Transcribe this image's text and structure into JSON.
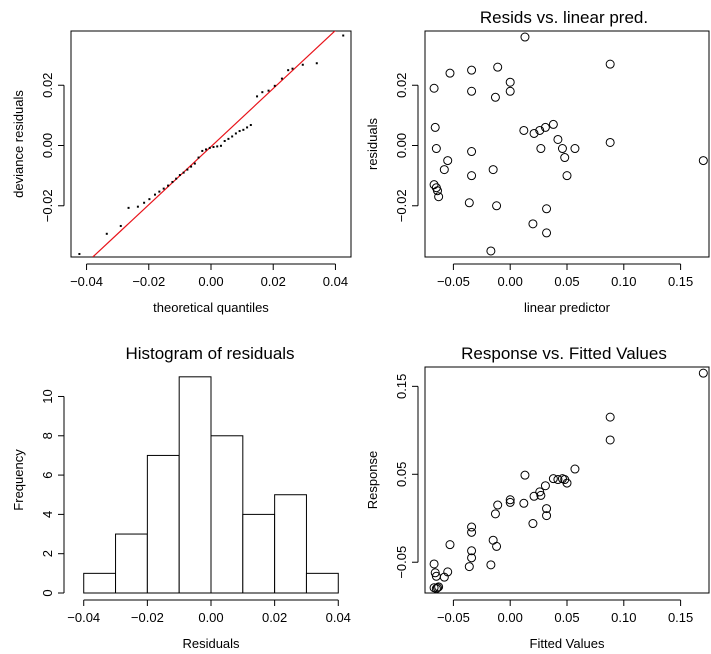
{
  "chart_data": [
    {
      "id": "qq",
      "type": "scatter",
      "title": "",
      "xlabel": "theoretical quantiles",
      "ylabel": "deviance residuals",
      "xlim": [
        -0.045,
        0.045
      ],
      "ylim": [
        -0.037,
        0.038
      ],
      "xticks": [
        -0.04,
        -0.02,
        0.0,
        0.02,
        0.04
      ],
      "xtick_labels": [
        "−0.04",
        "−0.02",
        "0.00",
        "0.02",
        "0.04"
      ],
      "yticks": [
        -0.02,
        0.0,
        0.02
      ],
      "ytick_labels": [
        "−0.02",
        "0.00",
        "0.02"
      ],
      "marker": "dot",
      "reference_line": {
        "color": "#e8141b",
        "x1": -0.038,
        "y1": -0.037,
        "x2": 0.045,
        "y2": 0.043
      },
      "points": [
        [
          -0.0423,
          -0.036
        ],
        [
          -0.0335,
          -0.0293
        ],
        [
          -0.029,
          -0.0267
        ],
        [
          -0.0265,
          -0.0207
        ],
        [
          -0.0235,
          -0.0203
        ],
        [
          -0.0215,
          -0.019
        ],
        [
          -0.0198,
          -0.0178
        ],
        [
          -0.018,
          -0.0163
        ],
        [
          -0.0166,
          -0.0153
        ],
        [
          -0.0152,
          -0.0143
        ],
        [
          -0.0138,
          -0.0133
        ],
        [
          -0.0124,
          -0.0121
        ],
        [
          -0.0112,
          -0.011
        ],
        [
          -0.01,
          -0.0098
        ],
        [
          -0.0088,
          -0.009
        ],
        [
          -0.0076,
          -0.008
        ],
        [
          -0.0064,
          -0.007
        ],
        [
          -0.0052,
          -0.006
        ],
        [
          -0.004,
          -0.004
        ],
        [
          -0.0028,
          -0.0018
        ],
        [
          -0.0016,
          -0.0013
        ],
        [
          -0.0004,
          -0.0008
        ],
        [
          0.0008,
          -0.0005
        ],
        [
          0.002,
          -0.0003
        ],
        [
          0.0032,
          -0.0001
        ],
        [
          0.0044,
          0.0015
        ],
        [
          0.0056,
          0.0022
        ],
        [
          0.0068,
          0.003
        ],
        [
          0.008,
          0.004
        ],
        [
          0.0092,
          0.0048
        ],
        [
          0.0104,
          0.0052
        ],
        [
          0.0116,
          0.006
        ],
        [
          0.0128,
          0.0068
        ],
        [
          0.0148,
          0.0163
        ],
        [
          0.0165,
          0.0177
        ],
        [
          0.0185,
          0.0182
        ],
        [
          0.0205,
          0.0198
        ],
        [
          0.0228,
          0.0222
        ],
        [
          0.0248,
          0.025
        ],
        [
          0.0262,
          0.0255
        ],
        [
          0.0295,
          0.0268
        ],
        [
          0.034,
          0.0273
        ],
        [
          0.0425,
          0.0365
        ]
      ]
    },
    {
      "id": "resid-lp",
      "type": "scatter",
      "title": "Resids vs. linear pred.",
      "xlabel": "linear predictor",
      "ylabel": "residuals",
      "xlim": [
        -0.075,
        0.175
      ],
      "ylim": [
        -0.037,
        0.038
      ],
      "xticks": [
        -0.05,
        0.0,
        0.05,
        0.1,
        0.15
      ],
      "xtick_labels": [
        "−0.05",
        "0.00",
        "0.05",
        "0.10",
        "0.15"
      ],
      "yticks": [
        -0.02,
        0.0,
        0.02
      ],
      "ytick_labels": [
        "−0.02",
        "0.00",
        "0.02"
      ],
      "marker": "circle",
      "points": [
        [
          -0.067,
          0.019
        ],
        [
          -0.066,
          0.006
        ],
        [
          -0.065,
          -0.001
        ],
        [
          -0.067,
          -0.013
        ],
        [
          -0.065,
          -0.014
        ],
        [
          -0.064,
          -0.015
        ],
        [
          -0.063,
          -0.017
        ],
        [
          -0.058,
          -0.008
        ],
        [
          -0.055,
          -0.005
        ],
        [
          -0.053,
          0.024
        ],
        [
          -0.036,
          -0.019
        ],
        [
          -0.034,
          -0.01
        ],
        [
          -0.034,
          -0.002
        ],
        [
          -0.034,
          0.018
        ],
        [
          -0.034,
          0.025
        ],
        [
          -0.017,
          -0.035
        ],
        [
          -0.015,
          -0.008
        ],
        [
          -0.013,
          0.016
        ],
        [
          -0.012,
          -0.02
        ],
        [
          -0.011,
          0.026
        ],
        [
          0.0,
          0.018
        ],
        [
          0.0,
          0.021
        ],
        [
          0.013,
          0.036
        ],
        [
          0.012,
          0.005
        ],
        [
          0.02,
          -0.026
        ],
        [
          0.021,
          0.004
        ],
        [
          0.026,
          0.005
        ],
        [
          0.027,
          -0.001
        ],
        [
          0.031,
          0.006
        ],
        [
          0.032,
          -0.021
        ],
        [
          0.032,
          -0.029
        ],
        [
          0.038,
          0.007
        ],
        [
          0.042,
          0.002
        ],
        [
          0.046,
          -0.001
        ],
        [
          0.048,
          -0.004
        ],
        [
          0.05,
          -0.01
        ],
        [
          0.057,
          -0.001
        ],
        [
          0.088,
          0.027
        ],
        [
          0.088,
          0.001
        ],
        [
          0.17,
          -0.005
        ]
      ]
    },
    {
      "id": "hist",
      "type": "bar",
      "title": "Histogram of residuals",
      "xlabel": "Residuals",
      "ylabel": "Frequency",
      "xlim": [
        -0.044,
        0.044
      ],
      "ylim": [
        0,
        11.5
      ],
      "xticks": [
        -0.04,
        -0.02,
        0.0,
        0.02,
        0.04
      ],
      "xtick_labels": [
        "−0.04",
        "−0.02",
        "0.00",
        "0.02",
        "0.04"
      ],
      "yticks": [
        0,
        2,
        4,
        6,
        8,
        10
      ],
      "ytick_labels": [
        "0",
        "2",
        "4",
        "6",
        "8",
        "10"
      ],
      "bins": [
        -0.04,
        -0.03,
        -0.02,
        -0.01,
        0.0,
        0.01,
        0.02,
        0.03,
        0.04
      ],
      "counts": [
        1,
        3,
        7,
        11,
        8,
        4,
        5,
        1
      ]
    },
    {
      "id": "resp-fit",
      "type": "scatter",
      "title": "Response vs. Fitted Values",
      "xlabel": "Fitted Values",
      "ylabel": "Response",
      "xlim": [
        -0.075,
        0.175
      ],
      "ylim": [
        -0.085,
        0.172
      ],
      "xticks": [
        -0.05,
        0.0,
        0.05,
        0.1,
        0.15
      ],
      "xtick_labels": [
        "−0.05",
        "0.00",
        "0.05",
        "0.10",
        "0.15"
      ],
      "yticks": [
        -0.05,
        0.05,
        0.15
      ],
      "ytick_labels": [
        "−0.05",
        "0.05",
        "0.15"
      ],
      "marker": "circle",
      "points": [
        [
          -0.067,
          -0.052
        ],
        [
          -0.066,
          -0.062
        ],
        [
          -0.065,
          -0.066
        ],
        [
          -0.067,
          -0.079
        ],
        [
          -0.065,
          -0.08
        ],
        [
          -0.064,
          -0.079
        ],
        [
          -0.063,
          -0.078
        ],
        [
          -0.058,
          -0.067
        ],
        [
          -0.055,
          -0.061
        ],
        [
          -0.053,
          -0.03
        ],
        [
          -0.036,
          -0.055
        ],
        [
          -0.034,
          -0.045
        ],
        [
          -0.034,
          -0.037
        ],
        [
          -0.034,
          -0.016
        ],
        [
          -0.034,
          -0.01
        ],
        [
          -0.017,
          -0.053
        ],
        [
          -0.015,
          -0.025
        ],
        [
          -0.013,
          0.005
        ],
        [
          -0.012,
          -0.032
        ],
        [
          -0.011,
          0.015
        ],
        [
          0.0,
          0.018
        ],
        [
          0.0,
          0.021
        ],
        [
          0.013,
          0.049
        ],
        [
          0.012,
          0.017
        ],
        [
          0.02,
          -0.006
        ],
        [
          0.021,
          0.025
        ],
        [
          0.026,
          0.03
        ],
        [
          0.027,
          0.026
        ],
        [
          0.031,
          0.037
        ],
        [
          0.032,
          0.011
        ],
        [
          0.032,
          0.003
        ],
        [
          0.038,
          0.045
        ],
        [
          0.042,
          0.044
        ],
        [
          0.046,
          0.045
        ],
        [
          0.048,
          0.044
        ],
        [
          0.05,
          0.04
        ],
        [
          0.057,
          0.056
        ],
        [
          0.088,
          0.115
        ],
        [
          0.088,
          0.089
        ],
        [
          0.17,
          0.165
        ]
      ]
    }
  ]
}
